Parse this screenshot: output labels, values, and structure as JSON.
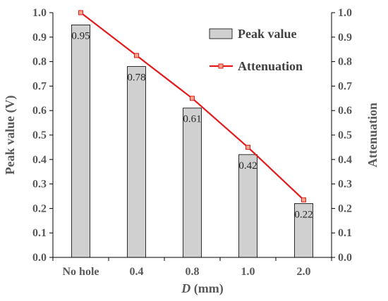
{
  "chart_data": {
    "type": "bar",
    "categories": [
      "No hole",
      "0.4",
      "0.8",
      "1.0",
      "2.0"
    ],
    "series": [
      {
        "name": "Peak value",
        "type": "bar",
        "axis": "left",
        "values": [
          0.95,
          0.78,
          0.61,
          0.42,
          0.22
        ],
        "labels": [
          "0.95",
          "0.78",
          "0.61",
          "0.42",
          "0.22"
        ],
        "color": "#d0d0d0",
        "edge_color": "#000000"
      },
      {
        "name": "Attenuation",
        "type": "line",
        "axis": "right",
        "values": [
          1.0,
          0.825,
          0.65,
          0.45,
          0.235
        ],
        "color": "#e31a1c",
        "marker": "square"
      }
    ],
    "xlabel_prefix": "D",
    "xlabel_suffix": " (mm)",
    "ylabel": "Peak value (V)",
    "y2label": "Attenuation",
    "ylim": [
      0,
      1.0
    ],
    "y2lim": [
      0,
      1.0
    ],
    "yticks": [
      "0.0",
      "0.1",
      "0.2",
      "0.3",
      "0.4",
      "0.5",
      "0.6",
      "0.7",
      "0.8",
      "0.9",
      "1.0"
    ],
    "y2ticks": [
      "0.0",
      "0.1",
      "0.2",
      "0.3",
      "0.4",
      "0.5",
      "0.6",
      "0.7",
      "0.8",
      "0.9",
      "1.0"
    ],
    "grid": false,
    "legend_position": "top-right"
  }
}
